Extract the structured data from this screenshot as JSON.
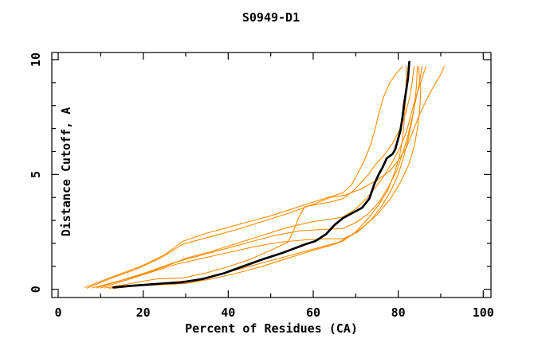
{
  "chart_data": {
    "type": "line",
    "title": "S0949-D1",
    "xlabel": "Percent of Residues (CA)",
    "ylabel": "Distance Cutoff, A",
    "xlim": [
      -1.5,
      101.9
    ],
    "ylim": [
      -0.36,
      10.31
    ],
    "grid": false,
    "legend": "none",
    "x_ticks_major": [
      0,
      20,
      40,
      60,
      80,
      100
    ],
    "x_ticks_minor": [
      10,
      30,
      50,
      70,
      90
    ],
    "y_ticks_major": [
      0,
      5,
      10
    ],
    "y_ticks_minor": [
      1,
      2,
      3,
      4,
      6,
      7,
      8,
      9
    ],
    "colors": {
      "model": "#ff8c00",
      "highlight": "#000000",
      "axis": "#000000"
    },
    "series": [
      {
        "name": "highlighted-model",
        "role": "highlight",
        "points": [
          [
            13,
            0.08
          ],
          [
            17,
            0.15
          ],
          [
            21,
            0.2
          ],
          [
            25,
            0.26
          ],
          [
            29,
            0.3
          ],
          [
            34,
            0.45
          ],
          [
            39,
            0.7
          ],
          [
            43.5,
            1.0
          ],
          [
            48,
            1.3
          ],
          [
            53,
            1.6
          ],
          [
            58,
            1.95
          ],
          [
            60.5,
            2.1
          ],
          [
            63,
            2.4
          ],
          [
            65,
            2.8
          ],
          [
            67,
            3.1
          ],
          [
            69.5,
            3.35
          ],
          [
            71.5,
            3.55
          ],
          [
            73.2,
            3.95
          ],
          [
            74.4,
            4.6
          ],
          [
            75.4,
            5.0
          ],
          [
            76.3,
            5.3
          ],
          [
            77.3,
            5.7
          ],
          [
            78.7,
            5.9
          ],
          [
            79.3,
            6.1
          ],
          [
            79.9,
            6.5
          ],
          [
            80.5,
            6.9
          ],
          [
            81,
            7.5
          ],
          [
            81.4,
            8.1
          ],
          [
            81.9,
            8.7
          ],
          [
            82.3,
            9.2
          ],
          [
            82.6,
            9.9
          ]
        ]
      },
      {
        "name": "model-1",
        "role": "model",
        "points": [
          [
            6.3,
            0.08
          ],
          [
            10,
            0.35
          ],
          [
            15,
            0.7
          ],
          [
            20,
            1.05
          ],
          [
            25,
            1.5
          ],
          [
            29.4,
            2.1
          ],
          [
            35,
            2.45
          ],
          [
            40,
            2.7
          ],
          [
            45,
            2.95
          ],
          [
            50,
            3.2
          ],
          [
            55,
            3.5
          ],
          [
            60,
            3.8
          ],
          [
            63.5,
            4.0
          ],
          [
            67,
            4.2
          ],
          [
            69,
            4.55
          ],
          [
            70.5,
            5.05
          ],
          [
            72,
            5.6
          ],
          [
            73.5,
            6.3
          ],
          [
            74.6,
            7.0
          ],
          [
            75.5,
            7.7
          ],
          [
            76.6,
            8.4
          ],
          [
            78,
            9.0
          ],
          [
            79.5,
            9.4
          ],
          [
            81,
            9.7
          ]
        ]
      },
      {
        "name": "model-2",
        "role": "model",
        "points": [
          [
            6.8,
            0.05
          ],
          [
            12,
            0.45
          ],
          [
            18,
            0.85
          ],
          [
            24,
            1.35
          ],
          [
            29.4,
            1.97
          ],
          [
            36,
            2.3
          ],
          [
            42,
            2.6
          ],
          [
            48,
            2.95
          ],
          [
            54,
            3.3
          ],
          [
            60,
            3.7
          ],
          [
            64,
            4.0
          ],
          [
            67.5,
            4.1
          ],
          [
            71,
            4.35
          ],
          [
            75,
            4.75
          ],
          [
            78,
            5.15
          ],
          [
            80,
            5.6
          ],
          [
            82,
            6.2
          ],
          [
            83.5,
            6.9
          ],
          [
            85,
            7.6
          ],
          [
            86.5,
            8.2
          ],
          [
            88.5,
            8.9
          ],
          [
            90,
            9.35
          ],
          [
            90.8,
            9.7
          ]
        ]
      },
      {
        "name": "model-3",
        "role": "model",
        "points": [
          [
            8,
            0.06
          ],
          [
            14,
            0.35
          ],
          [
            20,
            0.65
          ],
          [
            26,
            1.05
          ],
          [
            30,
            1.35
          ],
          [
            36,
            1.65
          ],
          [
            42,
            2.0
          ],
          [
            48,
            2.35
          ],
          [
            54,
            2.7
          ],
          [
            60,
            2.95
          ],
          [
            64,
            3.05
          ],
          [
            67,
            3.15
          ],
          [
            70,
            3.5
          ],
          [
            72.5,
            3.95
          ],
          [
            74.5,
            4.4
          ],
          [
            76.5,
            4.9
          ],
          [
            78.5,
            5.5
          ],
          [
            80.5,
            6.2
          ],
          [
            82,
            6.9
          ],
          [
            83,
            7.6
          ],
          [
            84,
            8.3
          ],
          [
            85.3,
            9.0
          ],
          [
            86.5,
            9.7
          ]
        ]
      },
      {
        "name": "model-4",
        "role": "model",
        "points": [
          [
            9,
            0.06
          ],
          [
            15,
            0.4
          ],
          [
            21,
            0.75
          ],
          [
            27,
            1.15
          ],
          [
            33,
            1.45
          ],
          [
            39,
            1.75
          ],
          [
            45,
            2.05
          ],
          [
            51,
            2.35
          ],
          [
            57,
            2.55
          ],
          [
            62,
            2.6
          ],
          [
            67,
            2.65
          ],
          [
            70,
            2.9
          ],
          [
            73,
            3.3
          ],
          [
            75.5,
            3.8
          ],
          [
            77.5,
            4.4
          ],
          [
            79.5,
            5.1
          ],
          [
            81,
            5.9
          ],
          [
            82.3,
            6.7
          ],
          [
            83.3,
            7.5
          ],
          [
            84.2,
            8.3
          ],
          [
            85,
            9.0
          ],
          [
            85.6,
            9.7
          ]
        ]
      },
      {
        "name": "model-5",
        "role": "model",
        "points": [
          [
            10,
            0.06
          ],
          [
            16,
            0.4
          ],
          [
            22,
            0.75
          ],
          [
            28,
            1.1
          ],
          [
            34,
            1.35
          ],
          [
            40,
            1.6
          ],
          [
            46,
            1.85
          ],
          [
            52,
            2.05
          ],
          [
            58,
            2.15
          ],
          [
            63,
            2.2
          ],
          [
            67,
            2.2
          ],
          [
            70.5,
            2.5
          ],
          [
            73.5,
            3.0
          ],
          [
            76,
            3.6
          ],
          [
            78,
            4.2
          ],
          [
            79.8,
            4.9
          ],
          [
            81.2,
            5.7
          ],
          [
            82.3,
            6.5
          ],
          [
            83.2,
            7.3
          ],
          [
            83.9,
            8.1
          ],
          [
            84.3,
            8.9
          ],
          [
            84.5,
            9.7
          ]
        ]
      },
      {
        "name": "model-6",
        "role": "model",
        "points": [
          [
            11,
            0.06
          ],
          [
            17,
            0.25
          ],
          [
            23,
            0.45
          ],
          [
            29.4,
            0.5
          ],
          [
            35,
            0.72
          ],
          [
            40,
            0.98
          ],
          [
            45,
            1.3
          ],
          [
            50,
            1.7
          ],
          [
            54,
            2.05
          ],
          [
            55.5,
            2.6
          ],
          [
            56.5,
            3.1
          ],
          [
            58,
            3.6
          ],
          [
            61,
            3.7
          ],
          [
            64,
            3.8
          ],
          [
            67,
            3.95
          ],
          [
            69.5,
            4.3
          ],
          [
            71.5,
            4.7
          ],
          [
            73,
            5.0
          ],
          [
            74.5,
            5.4
          ],
          [
            76.5,
            5.8
          ],
          [
            78.5,
            6.3
          ],
          [
            80.5,
            7.0
          ],
          [
            81.8,
            7.7
          ],
          [
            82.8,
            8.45
          ],
          [
            83.3,
            9.05
          ],
          [
            83.7,
            9.7
          ]
        ]
      },
      {
        "name": "model-7",
        "role": "model",
        "points": [
          [
            12,
            0.05
          ],
          [
            18,
            0.15
          ],
          [
            24,
            0.2
          ],
          [
            30,
            0.25
          ],
          [
            36,
            0.45
          ],
          [
            42,
            0.7
          ],
          [
            48,
            1.0
          ],
          [
            54,
            1.35
          ],
          [
            60,
            1.7
          ],
          [
            64,
            1.9
          ],
          [
            67,
            2.1
          ],
          [
            70,
            2.5
          ],
          [
            73,
            3.1
          ],
          [
            75.5,
            3.7
          ],
          [
            77.5,
            4.3
          ],
          [
            79,
            5.0
          ],
          [
            80.2,
            5.7
          ],
          [
            80.9,
            6.4
          ],
          [
            81.3,
            7.1
          ],
          [
            81.6,
            7.9
          ],
          [
            81.8,
            8.6
          ],
          [
            81.9,
            9.7
          ]
        ]
      },
      {
        "name": "model-8",
        "role": "model",
        "points": [
          [
            13.5,
            0.05
          ],
          [
            20,
            0.2
          ],
          [
            26,
            0.3
          ],
          [
            32,
            0.4
          ],
          [
            38,
            0.65
          ],
          [
            44,
            0.95
          ],
          [
            50,
            1.25
          ],
          [
            56,
            1.55
          ],
          [
            62,
            1.85
          ],
          [
            66,
            2.05
          ],
          [
            69,
            2.35
          ],
          [
            72,
            2.75
          ],
          [
            75,
            3.25
          ],
          [
            78,
            3.9
          ],
          [
            80.5,
            4.65
          ],
          [
            82.5,
            5.45
          ],
          [
            83.8,
            6.25
          ],
          [
            84.6,
            7.1
          ],
          [
            85.1,
            7.9
          ],
          [
            85.3,
            8.7
          ],
          [
            85,
            9.2
          ],
          [
            84.8,
            9.7
          ]
        ]
      }
    ]
  }
}
